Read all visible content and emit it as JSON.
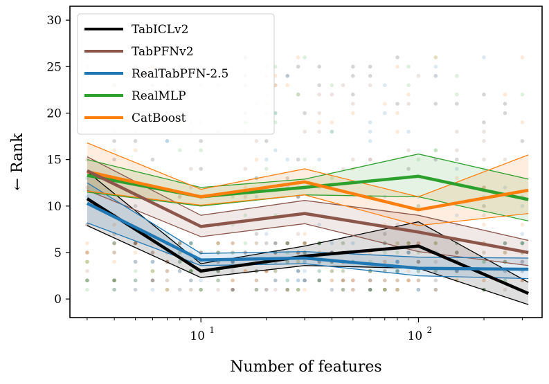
{
  "chart_data": {
    "type": "line",
    "xscale": "log",
    "xlabel": "Number of features",
    "ylabel": "← Rank",
    "xlim": [
      2.5,
      370
    ],
    "ylim": [
      -2,
      31.5
    ],
    "yticks": [
      0,
      5,
      10,
      15,
      20,
      25,
      30
    ],
    "xticks_major": [
      {
        "value": 10,
        "base": "10",
        "exp": "1"
      },
      {
        "value": 100,
        "base": "10",
        "exp": "2"
      }
    ],
    "xticks_minor": [
      3,
      4,
      5,
      6,
      7,
      8,
      9,
      20,
      30,
      40,
      50,
      60,
      70,
      80,
      90,
      200,
      300
    ],
    "legend_position": "top-left",
    "series": [
      {
        "name": "TabICLv2",
        "color": "#000000",
        "x": [
          3,
          10,
          30,
          100,
          320
        ],
        "values": [
          10.8,
          3.0,
          4.6,
          5.7,
          0.6
        ],
        "lower": [
          7.9,
          2.3,
          3.6,
          3.3,
          -0.6
        ],
        "upper": [
          13.7,
          3.8,
          5.7,
          8.3,
          1.8
        ]
      },
      {
        "name": "TabPFNv2",
        "color": "#8c564b",
        "x": [
          3,
          10,
          30,
          100,
          320
        ],
        "values": [
          13.8,
          7.8,
          9.2,
          7.2,
          5.0
        ],
        "lower": [
          11.7,
          6.7,
          8.1,
          5.1,
          3.6
        ],
        "upper": [
          15.3,
          9.0,
          10.6,
          9.0,
          6.3
        ]
      },
      {
        "name": "RealTabPFN-2.5",
        "color": "#1f77b4",
        "x": [
          3,
          10,
          30,
          100,
          320
        ],
        "values": [
          10.3,
          4.2,
          4.4,
          3.3,
          3.2
        ],
        "lower": [
          8.2,
          3.6,
          3.8,
          2.5,
          2.2
        ],
        "upper": [
          12.5,
          4.9,
          5.1,
          4.5,
          4.4
        ]
      },
      {
        "name": "RealMLP",
        "color": "#2ca02c",
        "x": [
          3,
          10,
          30,
          100,
          320
        ],
        "values": [
          13.3,
          11.0,
          12.0,
          13.2,
          10.7
        ],
        "lower": [
          11.5,
          10.0,
          11.2,
          11.0,
          8.4
        ],
        "upper": [
          15.0,
          12.0,
          12.9,
          15.6,
          12.9
        ]
      },
      {
        "name": "CatBoost",
        "color": "#ff7f0e",
        "x": [
          3,
          10,
          30,
          100,
          320
        ],
        "values": [
          13.7,
          11.0,
          12.6,
          9.6,
          11.7
        ],
        "lower": [
          11.6,
          10.1,
          11.2,
          7.9,
          9.2
        ],
        "upper": [
          16.8,
          11.8,
          14.0,
          11.0,
          15.5
        ]
      }
    ]
  }
}
